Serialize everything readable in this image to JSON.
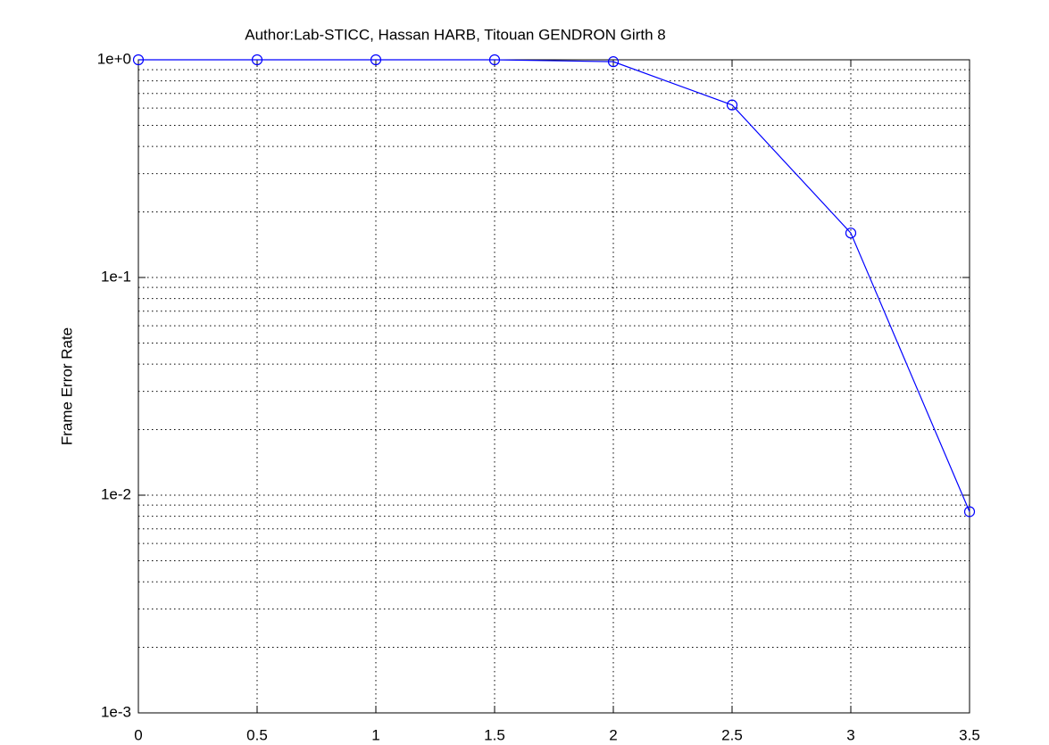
{
  "chart_data": {
    "type": "line",
    "title": "Author:Lab-STICC, Hassan HARB, Titouan GENDRON Girth 8",
    "y_label": "Frame Error Rate",
    "x": [
      0,
      0.5,
      1,
      1.5,
      2,
      2.5,
      3,
      3.5
    ],
    "series": [
      {
        "color": "#0000ff",
        "marker": "circle",
        "values": [
          1,
          1,
          1,
          1,
          0.98,
          0.62,
          0.16,
          0.0084
        ]
      }
    ],
    "xlim": [
      0,
      3.5
    ],
    "xticks": [
      0,
      0.5,
      1,
      1.5,
      2,
      2.5,
      3,
      3.5
    ],
    "ylim": [
      0.001,
      1
    ],
    "yticks": [
      {
        "value": 0.001,
        "label": "1e-3"
      },
      {
        "value": 0.01,
        "label": "1e-2"
      },
      {
        "value": 0.1,
        "label": "1e-1"
      },
      {
        "value": 1,
        "label": "1e+0"
      }
    ],
    "y_scale": "log",
    "grid": true,
    "minor_grid": true
  }
}
